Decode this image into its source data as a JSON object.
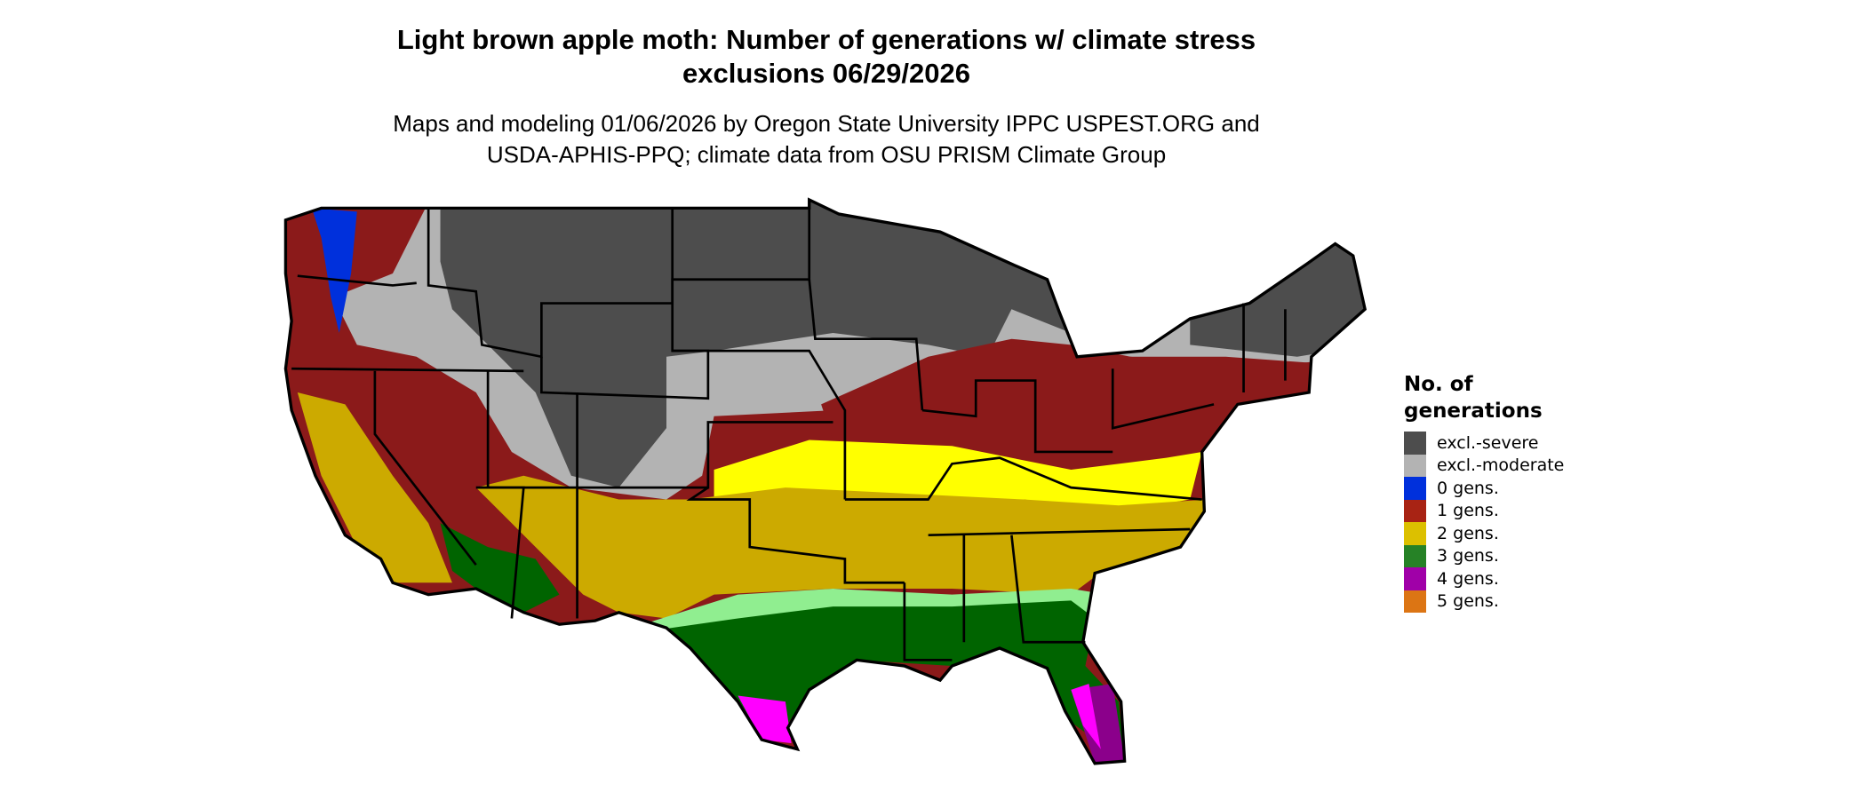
{
  "title": {
    "line1": "Light brown apple moth: Number of generations w/ climate stress",
    "line2": "exclusions 06/29/2026"
  },
  "subtitle": {
    "line1": "Maps and modeling 01/06/2026 by Oregon State University IPPC USPEST.ORG and",
    "line2": "USDA-APHIS-PPQ; climate data from OSU PRISM Climate Group"
  },
  "legend": {
    "title_line1": "No. of",
    "title_line2": "generations",
    "items": [
      {
        "label": "excl.-severe",
        "color": "#4d4d4d"
      },
      {
        "label": "excl.-moderate",
        "color": "#b3b3b3"
      },
      {
        "label": "0 gens.",
        "color": "#0030dc"
      },
      {
        "label": "1 gens.",
        "color": "#a82314"
      },
      {
        "label": "2 gens.",
        "color": "#dcc000"
      },
      {
        "label": "3 gens.",
        "color": "#268226"
      },
      {
        "label": "4 gens.",
        "color": "#a000a8"
      },
      {
        "label": "5 gens.",
        "color": "#dc7514"
      }
    ]
  },
  "map": {
    "region": "Contiguous United States",
    "colors": {
      "severe": "#4d4d4d",
      "moderate": "#b3b3b3",
      "one_gen": "#8b1a1a",
      "two_gen_light": "#ffff00",
      "two_gen": "#ccaa00",
      "three_gen_light": "#90ee90",
      "three_gen": "#006400",
      "four_gen": "#ff00ff",
      "four_gen_dark": "#8b008b",
      "zero_gen": "#0030dc"
    }
  }
}
